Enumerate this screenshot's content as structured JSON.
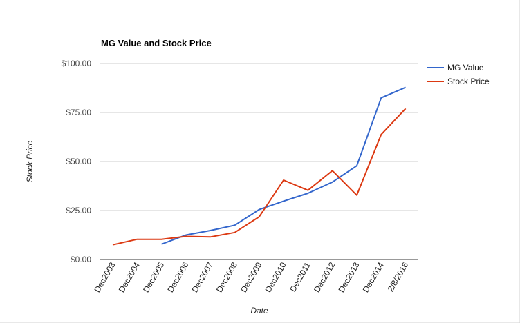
{
  "chart_data": {
    "type": "line",
    "title": "MG Value and Stock Price",
    "xlabel": "Date",
    "ylabel": "Stock Price",
    "categories": [
      "Dec2003",
      "Dec2004",
      "Dec2005",
      "Dec2006",
      "Dec2007",
      "Dec2008",
      "Dec2009",
      "Dec2010",
      "Dec2011",
      "Dec2012",
      "Dec2013",
      "Dec2014",
      "2/8/2016"
    ],
    "yticks": [
      "$0.00",
      "$25.00",
      "$50.00",
      "$75.00",
      "$100.00"
    ],
    "ylim": [
      0,
      100
    ],
    "grid": true,
    "legend": "right",
    "series": [
      {
        "name": "MG Value",
        "color": "#3366cc",
        "values": [
          null,
          null,
          7.8,
          12.5,
          14.8,
          17.5,
          25.5,
          29.8,
          33.8,
          39.5,
          47.8,
          82.5,
          87.8
        ]
      },
      {
        "name": "Stock Price",
        "color": "#dc3912",
        "values": [
          7.5,
          10.3,
          10.3,
          11.8,
          11.5,
          13.8,
          21.8,
          40.5,
          35.3,
          45.3,
          32.8,
          63.8,
          77.0
        ]
      }
    ]
  }
}
